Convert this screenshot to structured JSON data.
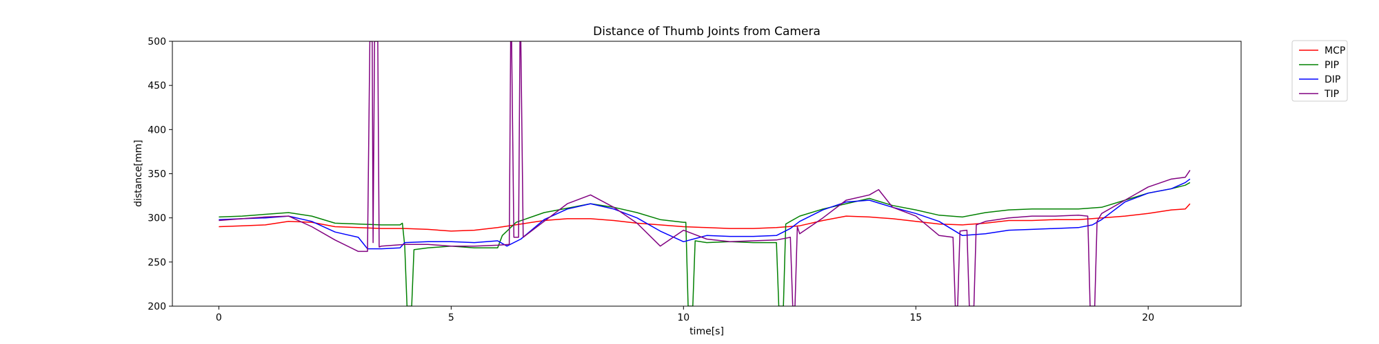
{
  "chart_data": {
    "type": "line",
    "title": "Distance of Thumb Joints from Camera",
    "xlabel": "time[s]",
    "ylabel": "distance[mm]",
    "xlim": [
      -1.0,
      22.0
    ],
    "ylim": [
      200,
      500
    ],
    "xticks": [
      0,
      5,
      10,
      15,
      20
    ],
    "yticks": [
      200,
      250,
      300,
      350,
      400,
      450,
      500
    ],
    "grid": false,
    "legend_position": "outside-top-right",
    "series": [
      {
        "name": "MCP",
        "color": "#ff0000",
        "points": [
          [
            0,
            290
          ],
          [
            0.5,
            291
          ],
          [
            1,
            292
          ],
          [
            1.5,
            296
          ],
          [
            2,
            295
          ],
          [
            2.5,
            290
          ],
          [
            3,
            289
          ],
          [
            3.5,
            288
          ],
          [
            4,
            288
          ],
          [
            4.5,
            287
          ],
          [
            5,
            285
          ],
          [
            5.5,
            286
          ],
          [
            6,
            289
          ],
          [
            6.5,
            293
          ],
          [
            7,
            297
          ],
          [
            7.5,
            299
          ],
          [
            8,
            299
          ],
          [
            8.5,
            297
          ],
          [
            9,
            294
          ],
          [
            9.5,
            292
          ],
          [
            10,
            290
          ],
          [
            10.5,
            289
          ],
          [
            11,
            288
          ],
          [
            11.5,
            288
          ],
          [
            12,
            289
          ],
          [
            12.5,
            291
          ],
          [
            13,
            297
          ],
          [
            13.5,
            302
          ],
          [
            14,
            301
          ],
          [
            14.5,
            299
          ],
          [
            15,
            296
          ],
          [
            15.5,
            293
          ],
          [
            16,
            292
          ],
          [
            16.5,
            294
          ],
          [
            17,
            297
          ],
          [
            17.5,
            297
          ],
          [
            18,
            298
          ],
          [
            18.5,
            298
          ],
          [
            19,
            300
          ],
          [
            19.5,
            302
          ],
          [
            20,
            305
          ],
          [
            20.5,
            309
          ],
          [
            20.8,
            310
          ],
          [
            20.9,
            316
          ]
        ]
      },
      {
        "name": "PIP",
        "color": "#008000",
        "points": [
          [
            0,
            301
          ],
          [
            0.5,
            302
          ],
          [
            1,
            304
          ],
          [
            1.5,
            306
          ],
          [
            2,
            302
          ],
          [
            2.5,
            294
          ],
          [
            3,
            293
          ],
          [
            3.5,
            292
          ],
          [
            3.9,
            292
          ],
          [
            3.95,
            294
          ],
          [
            4.0,
            268
          ],
          [
            4.05,
            200
          ],
          [
            4.15,
            200
          ],
          [
            4.2,
            264
          ],
          [
            4.5,
            266
          ],
          [
            5,
            268
          ],
          [
            5.5,
            266
          ],
          [
            6,
            266
          ],
          [
            6.1,
            280
          ],
          [
            6.4,
            295
          ],
          [
            7,
            306
          ],
          [
            7.5,
            311
          ],
          [
            8,
            316
          ],
          [
            8.5,
            312
          ],
          [
            9,
            306
          ],
          [
            9.5,
            298
          ],
          [
            10,
            295
          ],
          [
            10.05,
            295
          ],
          [
            10.1,
            200
          ],
          [
            10.2,
            200
          ],
          [
            10.25,
            274
          ],
          [
            10.5,
            272
          ],
          [
            11,
            273
          ],
          [
            11.5,
            272
          ],
          [
            12,
            272
          ],
          [
            12.05,
            200
          ],
          [
            12.15,
            200
          ],
          [
            12.2,
            293
          ],
          [
            12.5,
            302
          ],
          [
            13,
            310
          ],
          [
            13.5,
            316
          ],
          [
            14,
            322
          ],
          [
            14.5,
            314
          ],
          [
            15,
            309
          ],
          [
            15.5,
            303
          ],
          [
            16,
            301
          ],
          [
            16.5,
            306
          ],
          [
            17,
            309
          ],
          [
            17.5,
            310
          ],
          [
            18,
            310
          ],
          [
            18.5,
            310
          ],
          [
            19,
            312
          ],
          [
            19.5,
            320
          ],
          [
            20,
            328
          ],
          [
            20.5,
            333
          ],
          [
            20.8,
            337
          ],
          [
            20.9,
            340
          ]
        ]
      },
      {
        "name": "DIP",
        "color": "#0000ff",
        "points": [
          [
            0,
            298
          ],
          [
            0.5,
            299
          ],
          [
            1,
            300
          ],
          [
            1.5,
            302
          ],
          [
            2,
            296
          ],
          [
            2.5,
            284
          ],
          [
            3,
            278
          ],
          [
            3.2,
            265
          ],
          [
            3.5,
            265
          ],
          [
            3.9,
            266
          ],
          [
            4,
            272
          ],
          [
            4.5,
            273
          ],
          [
            5,
            273
          ],
          [
            5.5,
            272
          ],
          [
            6,
            274
          ],
          [
            6.2,
            268
          ],
          [
            6.5,
            276
          ],
          [
            7,
            298
          ],
          [
            7.5,
            310
          ],
          [
            8,
            316
          ],
          [
            8.5,
            310
          ],
          [
            9,
            300
          ],
          [
            9.5,
            285
          ],
          [
            10,
            273
          ],
          [
            10.5,
            280
          ],
          [
            11,
            279
          ],
          [
            11.5,
            279
          ],
          [
            12,
            280
          ],
          [
            12.3,
            288
          ],
          [
            12.5,
            296
          ],
          [
            13,
            309
          ],
          [
            13.5,
            318
          ],
          [
            14,
            320
          ],
          [
            14.5,
            312
          ],
          [
            15,
            305
          ],
          [
            15.5,
            296
          ],
          [
            16,
            280
          ],
          [
            16.5,
            282
          ],
          [
            17,
            286
          ],
          [
            17.5,
            287
          ],
          [
            18,
            288
          ],
          [
            18.5,
            289
          ],
          [
            18.8,
            292
          ],
          [
            19,
            298
          ],
          [
            19.5,
            318
          ],
          [
            20,
            328
          ],
          [
            20.5,
            333
          ],
          [
            20.8,
            340
          ],
          [
            20.9,
            344
          ]
        ]
      },
      {
        "name": "TIP",
        "color": "#800080",
        "points": [
          [
            0,
            297
          ],
          [
            0.5,
            299
          ],
          [
            1,
            301
          ],
          [
            1.5,
            302
          ],
          [
            2,
            290
          ],
          [
            2.5,
            275
          ],
          [
            3,
            262
          ],
          [
            3.2,
            262
          ],
          [
            3.25,
            500
          ],
          [
            3.3,
            500
          ],
          [
            3.32,
            272
          ],
          [
            3.35,
            500
          ],
          [
            3.42,
            500
          ],
          [
            3.45,
            267
          ],
          [
            3.5,
            268
          ],
          [
            4,
            270
          ],
          [
            4.5,
            270
          ],
          [
            5,
            268
          ],
          [
            5.5,
            268
          ],
          [
            6,
            269
          ],
          [
            6.25,
            270
          ],
          [
            6.28,
            500
          ],
          [
            6.3,
            500
          ],
          [
            6.35,
            278
          ],
          [
            6.45,
            278
          ],
          [
            6.48,
            500
          ],
          [
            6.5,
            500
          ],
          [
            6.55,
            278
          ],
          [
            7,
            296
          ],
          [
            7.5,
            316
          ],
          [
            8,
            326
          ],
          [
            8.5,
            312
          ],
          [
            9,
            294
          ],
          [
            9.5,
            268
          ],
          [
            10,
            286
          ],
          [
            10.5,
            276
          ],
          [
            11,
            273
          ],
          [
            11.5,
            274
          ],
          [
            12,
            275
          ],
          [
            12.3,
            278
          ],
          [
            12.35,
            200
          ],
          [
            12.4,
            200
          ],
          [
            12.45,
            290
          ],
          [
            12.5,
            282
          ],
          [
            13,
            300
          ],
          [
            13.5,
            320
          ],
          [
            14,
            326
          ],
          [
            14.2,
            332
          ],
          [
            14.5,
            312
          ],
          [
            15,
            302
          ],
          [
            15.5,
            280
          ],
          [
            15.8,
            278
          ],
          [
            15.85,
            200
          ],
          [
            15.9,
            200
          ],
          [
            15.95,
            285
          ],
          [
            16.1,
            286
          ],
          [
            16.15,
            200
          ],
          [
            16.25,
            200
          ],
          [
            16.3,
            292
          ],
          [
            16.5,
            296
          ],
          [
            17,
            300
          ],
          [
            17.5,
            302
          ],
          [
            18,
            302
          ],
          [
            18.5,
            303
          ],
          [
            18.7,
            302
          ],
          [
            18.75,
            200
          ],
          [
            18.85,
            200
          ],
          [
            18.9,
            296
          ],
          [
            19,
            305
          ],
          [
            19.5,
            320
          ],
          [
            20,
            335
          ],
          [
            20.5,
            344
          ],
          [
            20.8,
            346
          ],
          [
            20.9,
            354
          ]
        ]
      }
    ]
  }
}
